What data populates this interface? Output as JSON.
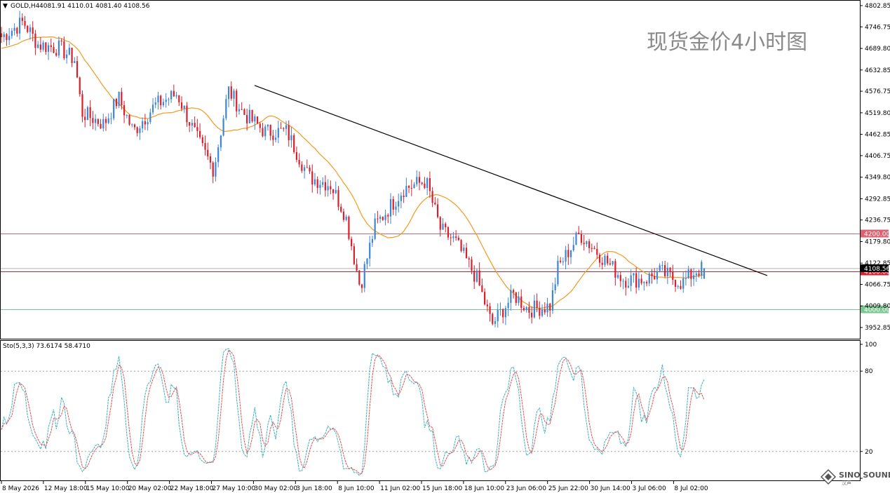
{
  "header": {
    "symbol": "GOLD,H4",
    "ohlc": "4081.91 4110.01 4081.40 4108.56"
  },
  "watermark": "现货金价4小时图",
  "brand": {
    "name": "SINO SOUND",
    "sub": "汉声"
  },
  "colors": {
    "bull": "#3d86d6",
    "bear": "#d91e2c",
    "ma": "#f39a1e",
    "trendline": "#000000",
    "res_line": "#e06070",
    "support_line": "#78c890",
    "stoch_main": "#3ab0c0",
    "stoch_signal": "#e05050"
  },
  "chart_data": [
    {
      "type": "candlestick",
      "title": "GOLD,H4",
      "ylim": [
        3920,
        4820
      ],
      "y_ticks": [
        "4802.85",
        "4746.75",
        "4689.80",
        "4632.85",
        "4576.75",
        "4519.80",
        "4462.85",
        "4406.75",
        "4349.80",
        "4292.85",
        "4236.75",
        "4179.80",
        "4122.85",
        "4066.75",
        "4009.80",
        "3952.85"
      ],
      "x_labels": [
        "8 May 2026",
        "12 May 18:00",
        "15 May 10:00",
        "20 May 02:00",
        "22 May 18:00",
        "27 May 10:00",
        "30 May 02:00",
        "3 Jun 18:00",
        "8 Jun 10:00",
        "11 Jun 02:00",
        "15 Jun 18:00",
        "18 Jun 10:00",
        "23 Jun 06:00",
        "25 Jun 22:00",
        "30 Jun 14:00",
        "3 Jul 06:00",
        "8 Jul 02:00"
      ],
      "levels": [
        {
          "name": "resistance",
          "value": 4200.0,
          "label": "4200.00"
        },
        {
          "name": "pivot",
          "value": 4100.0,
          "label": "4100.00"
        },
        {
          "name": "support",
          "value": 4000.0,
          "label": "4000.00"
        }
      ],
      "current_price": {
        "value": 4108.56,
        "label": "4108.56"
      },
      "trendline": {
        "from": {
          "bar": 0.31,
          "price": 4592
        },
        "to": {
          "bar": 0.98,
          "price": 4090
        }
      },
      "series": [
        {
          "name": "price",
          "anchors": [
            [
              0,
              4720
            ],
            [
              0.03,
              4760
            ],
            [
              0.05,
              4700
            ],
            [
              0.08,
              4690
            ],
            [
              0.1,
              4660
            ],
            [
              0.11,
              4520
            ],
            [
              0.14,
              4490
            ],
            [
              0.16,
              4560
            ],
            [
              0.18,
              4470
            ],
            [
              0.21,
              4540
            ],
            [
              0.24,
              4570
            ],
            [
              0.27,
              4440
            ],
            [
              0.29,
              4370
            ],
            [
              0.31,
              4580
            ],
            [
              0.33,
              4520
            ],
            [
              0.36,
              4470
            ],
            [
              0.39,
              4470
            ],
            [
              0.42,
              4350
            ],
            [
              0.45,
              4330
            ],
            [
              0.47,
              4250
            ],
            [
              0.49,
              4060
            ],
            [
              0.51,
              4220
            ],
            [
              0.53,
              4270
            ],
            [
              0.55,
              4320
            ],
            [
              0.58,
              4340
            ],
            [
              0.6,
              4210
            ],
            [
              0.62,
              4180
            ],
            [
              0.65,
              4080
            ],
            [
              0.67,
              3960
            ],
            [
              0.7,
              4040
            ],
            [
              0.72,
              4000
            ],
            [
              0.75,
              4010
            ],
            [
              0.76,
              4110
            ],
            [
              0.79,
              4200
            ],
            [
              0.82,
              4140
            ],
            [
              0.85,
              4080
            ],
            [
              0.88,
              4080
            ],
            [
              0.9,
              4100
            ],
            [
              0.93,
              4070
            ],
            [
              0.95,
              4105
            ],
            [
              0.96,
              4108
            ]
          ]
        }
      ]
    },
    {
      "type": "line",
      "title": "Sto(5,3,3) 73.6174 58.4710",
      "ylim": [
        0,
        100
      ],
      "y_ticks": [
        "100",
        "80",
        "20",
        "0"
      ],
      "series": [
        {
          "name": "main",
          "value": 73.6174
        },
        {
          "name": "signal",
          "value": 58.471
        }
      ]
    }
  ]
}
